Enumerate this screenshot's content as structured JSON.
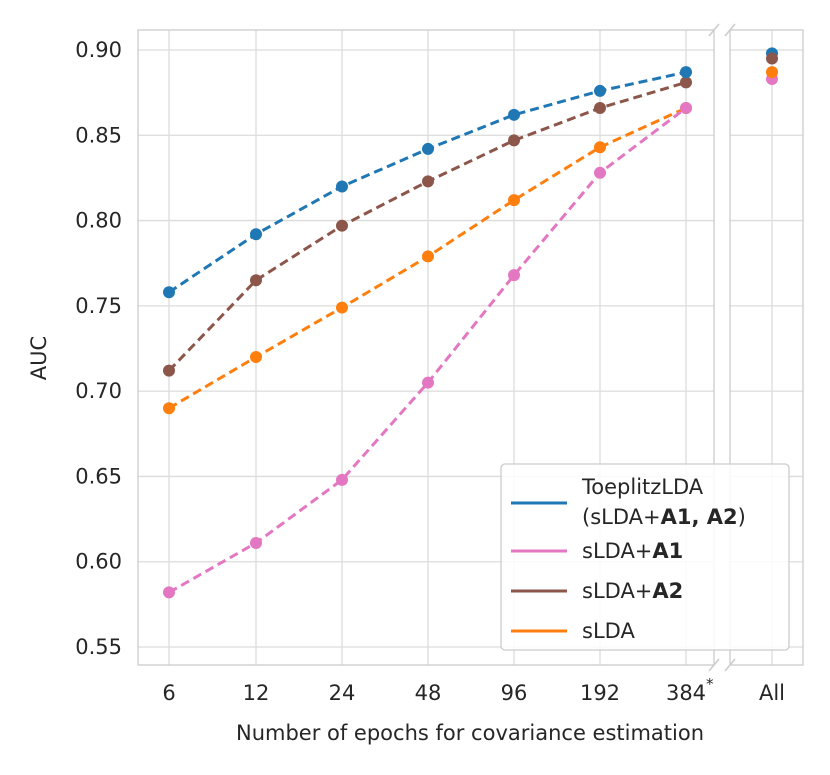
{
  "chart_data": {
    "type": "line",
    "xlabel": "Number of epochs for covariance estimation",
    "ylabel": "AUC",
    "categories": [
      "6",
      "12",
      "24",
      "48",
      "96",
      "192",
      "384"
    ],
    "categories_suffix": "*",
    "extra_category": "All",
    "ylim": [
      0.54,
      0.905
    ],
    "yticks": [
      "0.55",
      "0.60",
      "0.65",
      "0.70",
      "0.75",
      "0.80",
      "0.85",
      "0.90"
    ],
    "grid": true,
    "legend_position": "lower-right",
    "series": [
      {
        "key": "toeplitz",
        "name_line1": "ToeplitzLDA",
        "name_prefix": "(sLDA+",
        "name_bold": "A1, A2",
        "name_suffix": ")",
        "color": "#1f77b4",
        "values": [
          0.758,
          0.792,
          0.82,
          0.842,
          0.862,
          0.876,
          0.887
        ],
        "all_value": 0.898
      },
      {
        "key": "a1",
        "name_prefix": "sLDA+",
        "name_bold": "A1",
        "color": "#e377c2",
        "values": [
          0.582,
          0.611,
          0.648,
          0.705,
          0.768,
          0.828,
          0.866
        ],
        "all_value": 0.883
      },
      {
        "key": "a2",
        "name_prefix": "sLDA+",
        "name_bold": "A2",
        "color": "#8c564b",
        "values": [
          0.712,
          0.765,
          0.797,
          0.823,
          0.847,
          0.866,
          0.881
        ],
        "all_value": 0.895
      },
      {
        "key": "slda",
        "name_prefix": "sLDA",
        "color": "#ff7f0e",
        "values": [
          0.69,
          0.72,
          0.749,
          0.779,
          0.812,
          0.843,
          0.866
        ],
        "all_value": 0.887
      }
    ]
  }
}
